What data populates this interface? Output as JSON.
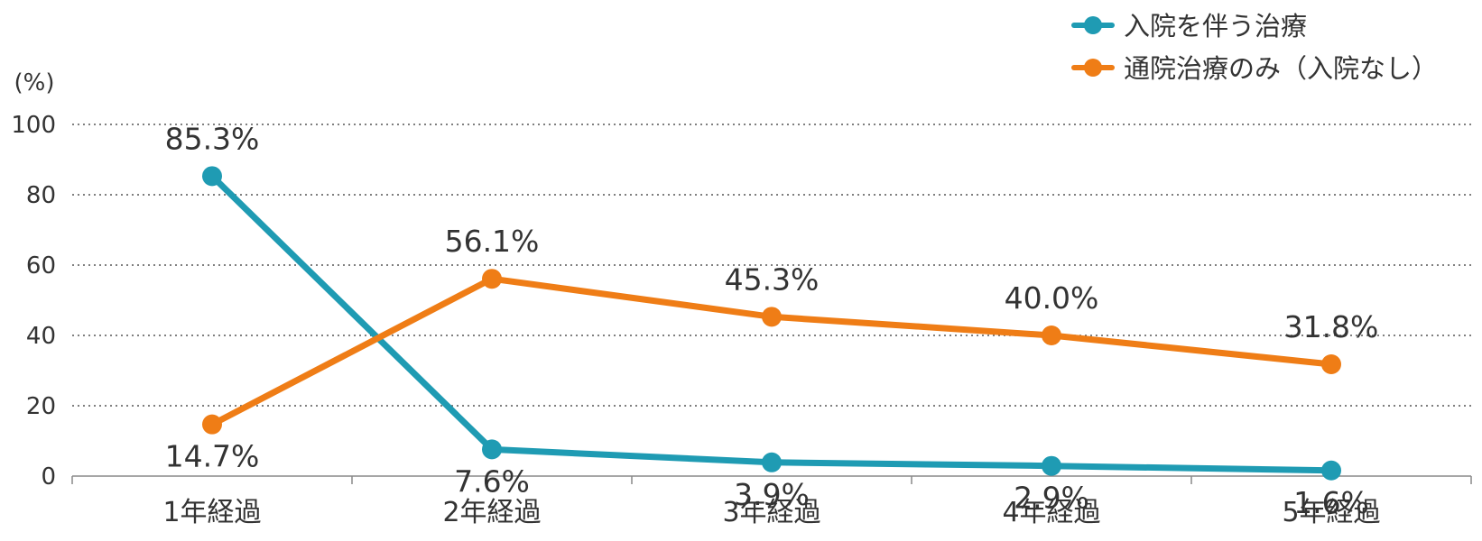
{
  "chart_data": {
    "type": "line",
    "ylabel": "(%)",
    "ylim": [
      0,
      100
    ],
    "yticks": [
      "0",
      "20",
      "40",
      "60",
      "80",
      "100"
    ],
    "categories": [
      "1年経過",
      "2年経過",
      "3年経過",
      "4年経過",
      "5年経過"
    ],
    "grid": true,
    "legend_position": "top-right",
    "series": [
      {
        "name": "入院を伴う治療",
        "color": "#1f9bb3",
        "values": [
          85.3,
          7.6,
          3.9,
          2.9,
          1.6
        ],
        "labels": [
          "85.3%",
          "7.6%",
          "3.9%",
          "2.9%",
          "1.6%"
        ]
      },
      {
        "name": "通院治療のみ（入院なし）",
        "color": "#ef7d16",
        "values": [
          14.7,
          56.1,
          45.3,
          40.0,
          31.8
        ],
        "labels": [
          "14.7%",
          "56.1%",
          "45.3%",
          "40.0%",
          "31.8%"
        ]
      }
    ]
  }
}
